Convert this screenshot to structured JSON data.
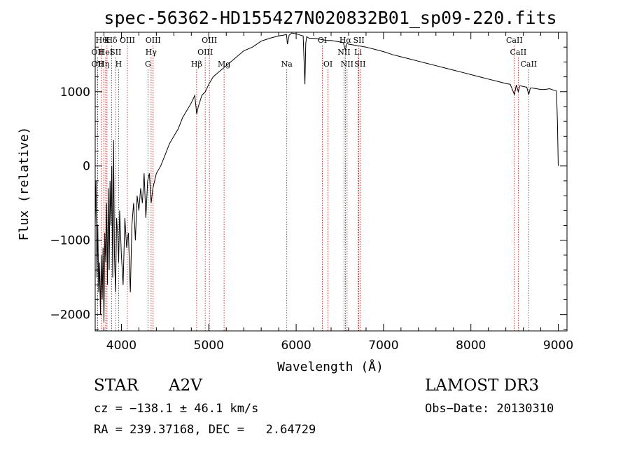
{
  "chart_data": {
    "type": "line",
    "title": "spec-56362-HD155427N020832B01_sp09-220.fits",
    "xlabel": "Wavelength (Å)",
    "ylabel": "Flux (relative)",
    "xlim": [
      3700,
      9100
    ],
    "ylim": [
      -2220,
      1800
    ],
    "x_ticks": [
      4000,
      5000,
      6000,
      7000,
      8000,
      9000
    ],
    "y_ticks": [
      -2000,
      -1000,
      0,
      1000
    ],
    "x_tick_labels": [
      "4000",
      "5000",
      "6000",
      "7000",
      "8000",
      "9000"
    ],
    "y_tick_labels": [
      "−2000",
      "−1000",
      "0",
      "1000"
    ],
    "grid": false,
    "line_color": "#000000",
    "marker_color": "#cc0000",
    "series": [
      {
        "x": [
          3700,
          3710,
          3720,
          3730,
          3740,
          3750,
          3760,
          3770,
          3780,
          3790,
          3800,
          3810,
          3820,
          3830,
          3840,
          3850,
          3860,
          3870,
          3880,
          3890,
          3900,
          3910,
          3920,
          3933,
          3945,
          3960,
          3968,
          3980,
          3990,
          4000,
          4020,
          4040,
          4060,
          4080,
          4102,
          4120,
          4140,
          4160,
          4180,
          4200,
          4220,
          4240,
          4260,
          4280,
          4300,
          4320,
          4340,
          4360,
          4380,
          4400,
          4450,
          4500,
          4550,
          4600,
          4650,
          4700,
          4750,
          4800,
          4840,
          4862,
          4880,
          4920,
          4960,
          5000,
          5050,
          5100,
          5150,
          5200,
          5300,
          5400,
          5500,
          5600,
          5700,
          5800,
          5850,
          5890,
          5900,
          5920,
          5950,
          6000,
          6050,
          6080,
          6100,
          6110,
          6120,
          6150,
          6200,
          6250,
          6300,
          6350,
          6400,
          6450,
          6500,
          6540,
          6563,
          6580,
          6600,
          6650,
          6700,
          6750,
          6800,
          6900,
          7000,
          7100,
          7200,
          7300,
          7400,
          7500,
          7600,
          7700,
          7800,
          7900,
          8000,
          8100,
          8200,
          8300,
          8400,
          8450,
          8498,
          8520,
          8542,
          8560,
          8600,
          8640,
          8662,
          8680,
          8700,
          8750,
          8800,
          8850,
          8900,
          8950,
          8980,
          8990,
          9000
        ],
        "y": [
          -800,
          -200,
          -1500,
          -800,
          -1700,
          -1300,
          -2000,
          -1200,
          -1800,
          -1100,
          -2100,
          -900,
          -1300,
          -500,
          -1600,
          -300,
          -1400,
          -200,
          -800,
          0,
          -1500,
          350,
          -1200,
          -1700,
          -700,
          -1000,
          -1300,
          -600,
          -900,
          -1200,
          -1600,
          -700,
          -1100,
          -900,
          -1700,
          -800,
          -500,
          -1000,
          -400,
          -600,
          -300,
          -500,
          -100,
          -700,
          -200,
          -100,
          -500,
          -300,
          -200,
          -100,
          0,
          150,
          300,
          400,
          500,
          650,
          750,
          850,
          950,
          700,
          800,
          950,
          1000,
          1100,
          1200,
          1250,
          1300,
          1350,
          1450,
          1550,
          1600,
          1680,
          1720,
          1750,
          1760,
          1770,
          1640,
          1760,
          1790,
          1780,
          1760,
          1750,
          1100,
          1650,
          1740,
          1720,
          1720,
          1710,
          1700,
          1690,
          1690,
          1680,
          1670,
          1660,
          1560,
          1650,
          1640,
          1630,
          1620,
          1610,
          1600,
          1570,
          1540,
          1500,
          1470,
          1440,
          1410,
          1380,
          1350,
          1320,
          1290,
          1260,
          1230,
          1200,
          1170,
          1140,
          1110,
          1100,
          960,
          1090,
          1000,
          1080,
          1070,
          1060,
          960,
          1050,
          1050,
          1040,
          1030,
          1030,
          1040,
          1020,
          1010,
          600,
          0
        ]
      }
    ],
    "line_markers": [
      {
        "x": 3770,
        "label": "Hθ",
        "row": 0
      },
      {
        "x": 3835,
        "label": "K",
        "row": 0
      },
      {
        "x": 3889,
        "label": "Hδ",
        "row": 0
      },
      {
        "x": 4068,
        "label": "OIII",
        "row": 0
      },
      {
        "x": 4363,
        "label": "OIII",
        "row": 0
      },
      {
        "x": 5007,
        "label": "OIII",
        "row": 0
      },
      {
        "x": 6300,
        "label": "OI",
        "row": 0
      },
      {
        "x": 6563,
        "label": "Hα",
        "row": 0
      },
      {
        "x": 6717,
        "label": "SII",
        "row": 0
      },
      {
        "x": 8498,
        "label": "CaII",
        "row": 0
      },
      {
        "x": 3727,
        "label": "OII",
        "row": 1
      },
      {
        "x": 3820,
        "label": "HeI",
        "row": 1
      },
      {
        "x": 3934,
        "label": "SII",
        "row": 1
      },
      {
        "x": 4340,
        "label": "Hγ",
        "row": 1
      },
      {
        "x": 4959,
        "label": "OIII",
        "row": 1
      },
      {
        "x": 6548,
        "label": "NII",
        "row": 1
      },
      {
        "x": 6708,
        "label": "Li",
        "row": 1
      },
      {
        "x": 8542,
        "label": "CaII",
        "row": 1
      },
      {
        "x": 3727,
        "label": "OII",
        "row": 2
      },
      {
        "x": 3798,
        "label": "Hη",
        "row": 2
      },
      {
        "x": 3968,
        "label": "H",
        "row": 2
      },
      {
        "x": 4304,
        "label": "G",
        "row": 2
      },
      {
        "x": 4861,
        "label": "Hβ",
        "row": 2
      },
      {
        "x": 5175,
        "label": "Mg",
        "row": 2
      },
      {
        "x": 5893,
        "label": "Na",
        "row": 2
      },
      {
        "x": 6364,
        "label": "OI",
        "row": 2
      },
      {
        "x": 6583,
        "label": "NII",
        "row": 2
      },
      {
        "x": 6731,
        "label": "SII",
        "row": 2
      },
      {
        "x": 8662,
        "label": "CaII",
        "row": 2
      }
    ]
  },
  "info": {
    "object_class": "STAR",
    "subclass": "A2V",
    "survey": "LAMOST DR3",
    "cz_line": "cz = −138.1 ± 46.1 km/s",
    "obs_date": "Obs−Date: 20130310",
    "coords": "RA = 239.37168, DEC =   2.64729"
  }
}
